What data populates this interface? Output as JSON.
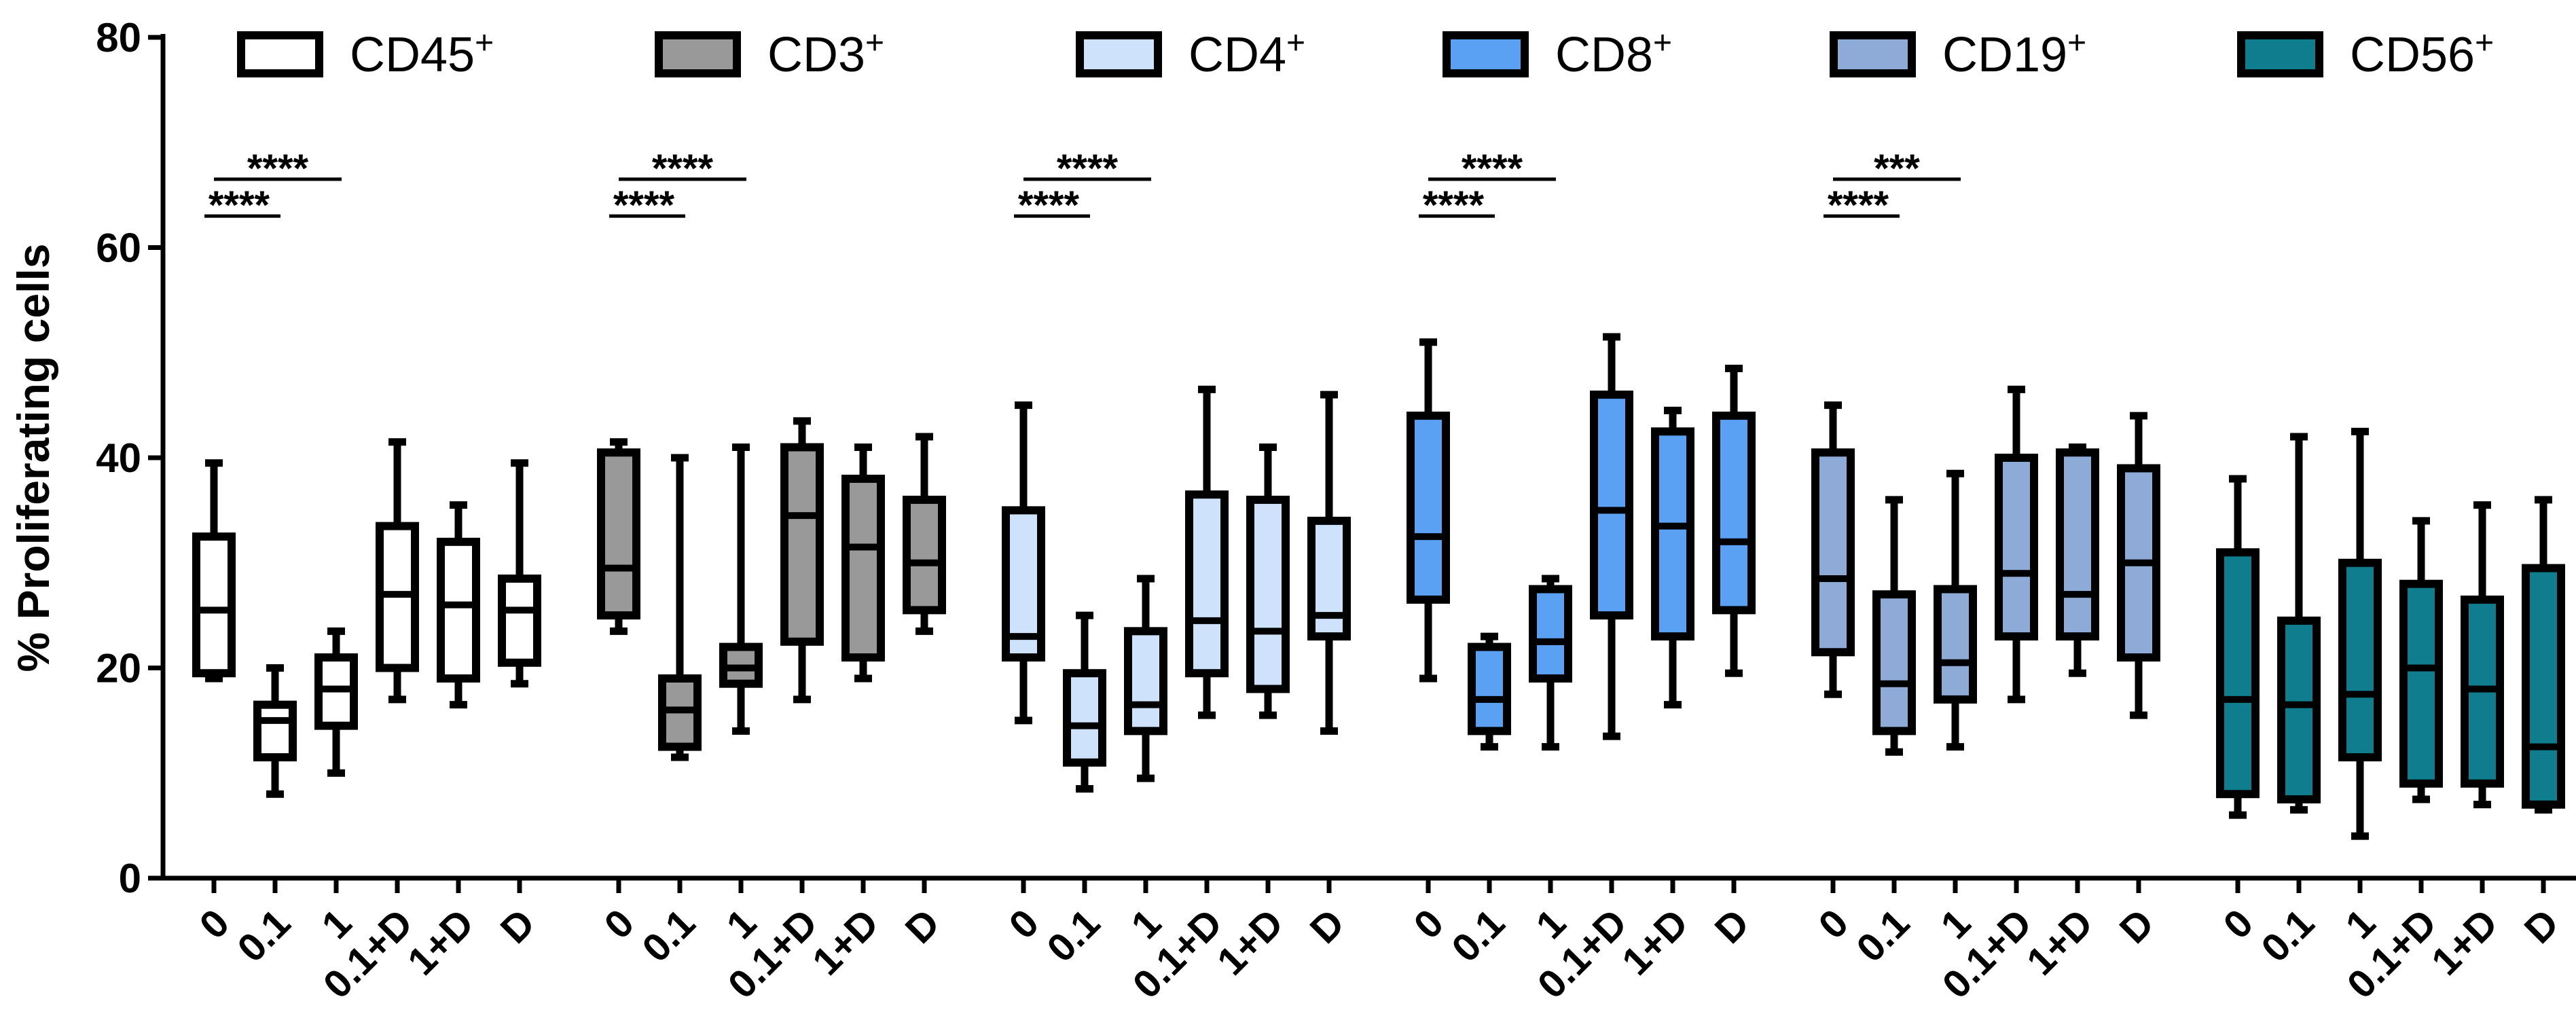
{
  "chart_data": {
    "type": "boxplot",
    "title": "",
    "xlabel": "",
    "ylabel": "% Proliferating cells",
    "ylim": [
      0,
      80
    ],
    "yticks": [
      0,
      20,
      40,
      60,
      80
    ],
    "categories": [
      "0",
      "0.1",
      "1",
      "0.1+D",
      "1+D",
      "D"
    ],
    "series": [
      {
        "name": "CD45",
        "sup": "+",
        "color": "#ffffff",
        "boxes": [
          {
            "category": "0",
            "min": 19,
            "q1": 19.5,
            "median": 25.5,
            "q3": 32.5,
            "max": 39.5
          },
          {
            "category": "0.1",
            "min": 8,
            "q1": 11.5,
            "median": 15,
            "q3": 16.5,
            "max": 20
          },
          {
            "category": "1",
            "min": 10,
            "q1": 14.5,
            "median": 18,
            "q3": 21,
            "max": 23.5
          },
          {
            "category": "0.1+D",
            "min": 17,
            "q1": 20,
            "median": 27,
            "q3": 33.5,
            "max": 41.5
          },
          {
            "category": "1+D",
            "min": 16.5,
            "q1": 19,
            "median": 26,
            "q3": 32,
            "max": 35.5
          },
          {
            "category": "D",
            "min": 18.5,
            "q1": 20.5,
            "median": 25.5,
            "q3": 28.5,
            "max": 39.5
          }
        ],
        "significance": [
          {
            "label": "****",
            "from": "0",
            "to": "1"
          },
          {
            "label": "****",
            "from": "0",
            "to": "0.1"
          }
        ]
      },
      {
        "name": "CD3",
        "sup": "+",
        "color": "#999999",
        "boxes": [
          {
            "category": "0",
            "min": 23.5,
            "q1": 25,
            "median": 29.5,
            "q3": 40.5,
            "max": 41.5
          },
          {
            "category": "0.1",
            "min": 11.5,
            "q1": 12.5,
            "median": 16,
            "q3": 19,
            "max": 40
          },
          {
            "category": "1",
            "min": 14,
            "q1": 18.5,
            "median": 20,
            "q3": 22,
            "max": 41
          },
          {
            "category": "0.1+D",
            "min": 17,
            "q1": 22.5,
            "median": 34.5,
            "q3": 41,
            "max": 43.5
          },
          {
            "category": "1+D",
            "min": 19,
            "q1": 21,
            "median": 31.5,
            "q3": 38,
            "max": 41
          },
          {
            "category": "D",
            "min": 23.5,
            "q1": 25.5,
            "median": 30,
            "q3": 36,
            "max": 42
          }
        ],
        "significance": [
          {
            "label": "****",
            "from": "0",
            "to": "1"
          },
          {
            "label": "****",
            "from": "0",
            "to": "0.1"
          }
        ]
      },
      {
        "name": "CD4",
        "sup": "+",
        "color": "#cfe2fb",
        "boxes": [
          {
            "category": "0",
            "min": 15,
            "q1": 21,
            "median": 23,
            "q3": 35,
            "max": 45
          },
          {
            "category": "0.1",
            "min": 8.5,
            "q1": 11,
            "median": 14.5,
            "q3": 19.5,
            "max": 25
          },
          {
            "category": "1",
            "min": 9.5,
            "q1": 14,
            "median": 16.5,
            "q3": 23.5,
            "max": 28.5
          },
          {
            "category": "0.1+D",
            "min": 15.5,
            "q1": 19.5,
            "median": 24.5,
            "q3": 36.5,
            "max": 46.5
          },
          {
            "category": "1+D",
            "min": 15.5,
            "q1": 18,
            "median": 23.5,
            "q3": 36,
            "max": 41
          },
          {
            "category": "D",
            "min": 14,
            "q1": 23,
            "median": 25,
            "q3": 34,
            "max": 46
          }
        ],
        "significance": [
          {
            "label": "****",
            "from": "0",
            "to": "1"
          },
          {
            "label": "****",
            "from": "0",
            "to": "0.1"
          }
        ]
      },
      {
        "name": "CD8",
        "sup": "+",
        "color": "#5aa1f4",
        "boxes": [
          {
            "category": "0",
            "min": 19,
            "q1": 26.5,
            "median": 32.5,
            "q3": 44,
            "max": 51
          },
          {
            "category": "0.1",
            "min": 12.5,
            "q1": 14,
            "median": 17,
            "q3": 22,
            "max": 23
          },
          {
            "category": "1",
            "min": 12.5,
            "q1": 19,
            "median": 22.5,
            "q3": 27.5,
            "max": 28.5
          },
          {
            "category": "0.1+D",
            "min": 13.5,
            "q1": 25,
            "median": 35,
            "q3": 46,
            "max": 51.5
          },
          {
            "category": "1+D",
            "min": 16.5,
            "q1": 23,
            "median": 33.5,
            "q3": 42.5,
            "max": 44.5
          },
          {
            "category": "D",
            "min": 19.5,
            "q1": 25.5,
            "median": 32,
            "q3": 44,
            "max": 48.5
          }
        ],
        "significance": [
          {
            "label": "****",
            "from": "0",
            "to": "1"
          },
          {
            "label": "****",
            "from": "0",
            "to": "0.1"
          }
        ]
      },
      {
        "name": "CD19",
        "sup": "+",
        "color": "#8eaad6",
        "boxes": [
          {
            "category": "0",
            "min": 17.5,
            "q1": 21.5,
            "median": 28.5,
            "q3": 40.5,
            "max": 45
          },
          {
            "category": "0.1",
            "min": 12,
            "q1": 14,
            "median": 18.5,
            "q3": 27,
            "max": 36
          },
          {
            "category": "1",
            "min": 12.5,
            "q1": 17,
            "median": 20.5,
            "q3": 27.5,
            "max": 38.5
          },
          {
            "category": "0.1+D",
            "min": 17,
            "q1": 23,
            "median": 29,
            "q3": 40,
            "max": 46.5
          },
          {
            "category": "1+D",
            "min": 19.5,
            "q1": 23,
            "median": 27,
            "q3": 40.5,
            "max": 41
          },
          {
            "category": "D",
            "min": 15.5,
            "q1": 21,
            "median": 30,
            "q3": 39,
            "max": 44
          }
        ],
        "significance": [
          {
            "label": "***",
            "from": "0",
            "to": "1"
          },
          {
            "label": "****",
            "from": "0",
            "to": "0.1"
          }
        ]
      },
      {
        "name": "CD56",
        "sup": "+",
        "color": "#0f7d8e",
        "boxes": [
          {
            "category": "0",
            "min": 6,
            "q1": 8,
            "median": 17,
            "q3": 31,
            "max": 38
          },
          {
            "category": "0.1",
            "min": 6.5,
            "q1": 7.5,
            "median": 16.5,
            "q3": 24.5,
            "max": 42
          },
          {
            "category": "1",
            "min": 4,
            "q1": 11.5,
            "median": 17.5,
            "q3": 30,
            "max": 42.5
          },
          {
            "category": "0.1+D",
            "min": 7.5,
            "q1": 9,
            "median": 20,
            "q3": 28,
            "max": 34
          },
          {
            "category": "1+D",
            "min": 7,
            "q1": 9,
            "median": 18,
            "q3": 26.5,
            "max": 35.5
          },
          {
            "category": "D",
            "min": 6.5,
            "q1": 7,
            "median": 12.5,
            "q3": 29.5,
            "max": 36
          }
        ],
        "significance": []
      }
    ],
    "legend_position": "top"
  }
}
